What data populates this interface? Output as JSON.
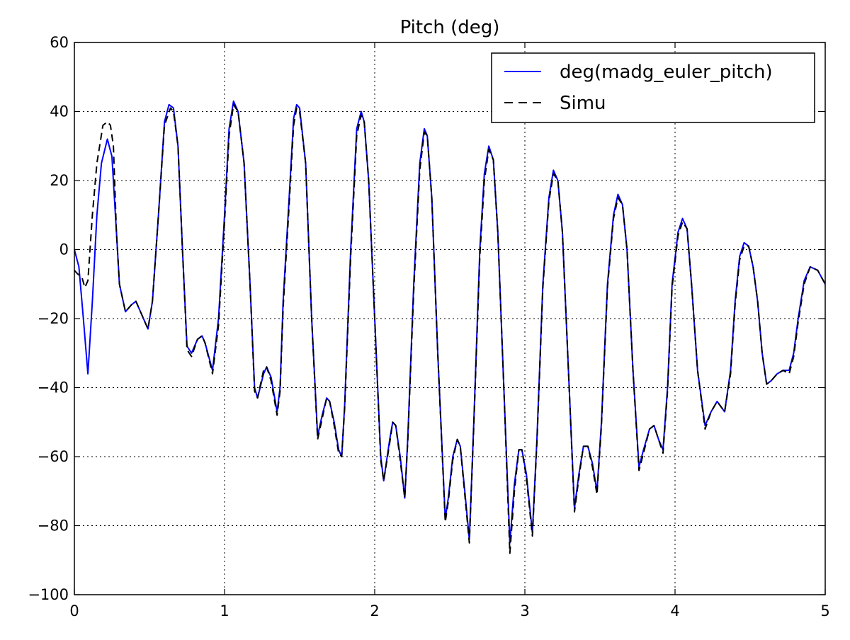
{
  "chart_data": {
    "type": "line",
    "title": "Pitch (deg)",
    "xlabel": "",
    "ylabel": "",
    "xlim": [
      0,
      5
    ],
    "ylim": [
      -100,
      60
    ],
    "xticks": [
      0,
      1,
      2,
      3,
      4,
      5
    ],
    "xtick_labels": [
      "0",
      "1",
      "2",
      "3",
      "4",
      "5"
    ],
    "yticks": [
      -100,
      -80,
      -60,
      -40,
      -20,
      0,
      20,
      40,
      60
    ],
    "ytick_labels": [
      "−100",
      "−80",
      "−60",
      "−40",
      "−20",
      "0",
      "20",
      "40",
      "60"
    ],
    "grid": true,
    "legend_position": "top-right",
    "series": [
      {
        "name": "deg(madg_euler_pitch)",
        "color": "#0000ff",
        "style": "solid",
        "points": [
          [
            0,
            0
          ],
          [
            0.03,
            -5
          ],
          [
            0.06,
            -20
          ],
          [
            0.09,
            -36
          ],
          [
            0.12,
            -15
          ],
          [
            0.15,
            10
          ],
          [
            0.18,
            25
          ],
          [
            0.22,
            32
          ],
          [
            0.25,
            27
          ],
          [
            0.28,
            5
          ],
          [
            0.3,
            -10
          ],
          [
            0.34,
            -18
          ],
          [
            0.38,
            -16
          ],
          [
            0.41,
            -15
          ],
          [
            0.45,
            -19
          ],
          [
            0.49,
            -23
          ],
          [
            0.52,
            -15
          ],
          [
            0.56,
            10
          ],
          [
            0.6,
            37
          ],
          [
            0.63,
            42
          ],
          [
            0.66,
            41
          ],
          [
            0.69,
            30
          ],
          [
            0.72,
            0
          ],
          [
            0.75,
            -28
          ],
          [
            0.78,
            -30
          ],
          [
            0.82,
            -26
          ],
          [
            0.85,
            -25
          ],
          [
            0.87,
            -27
          ],
          [
            0.92,
            -35
          ],
          [
            0.96,
            -20
          ],
          [
            1.0,
            10
          ],
          [
            1.03,
            35
          ],
          [
            1.06,
            43
          ],
          [
            1.09,
            40
          ],
          [
            1.13,
            25
          ],
          [
            1.17,
            -10
          ],
          [
            1.2,
            -40
          ],
          [
            1.22,
            -43
          ],
          [
            1.26,
            -36
          ],
          [
            1.28,
            -34
          ],
          [
            1.31,
            -37
          ],
          [
            1.35,
            -47
          ],
          [
            1.37,
            -40
          ],
          [
            1.39,
            -15
          ],
          [
            1.43,
            15
          ],
          [
            1.46,
            38
          ],
          [
            1.48,
            42
          ],
          [
            1.5,
            41
          ],
          [
            1.54,
            25
          ],
          [
            1.58,
            -20
          ],
          [
            1.62,
            -54
          ],
          [
            1.65,
            -48
          ],
          [
            1.68,
            -43
          ],
          [
            1.7,
            -44
          ],
          [
            1.73,
            -50
          ],
          [
            1.76,
            -58
          ],
          [
            1.78,
            -60
          ],
          [
            1.8,
            -45
          ],
          [
            1.84,
            0
          ],
          [
            1.88,
            35
          ],
          [
            1.91,
            40
          ],
          [
            1.93,
            37
          ],
          [
            1.96,
            20
          ],
          [
            2.0,
            -20
          ],
          [
            2.04,
            -60
          ],
          [
            2.06,
            -67
          ],
          [
            2.1,
            -55
          ],
          [
            2.12,
            -50
          ],
          [
            2.14,
            -51
          ],
          [
            2.17,
            -60
          ],
          [
            2.2,
            -72
          ],
          [
            2.22,
            -55
          ],
          [
            2.26,
            -10
          ],
          [
            2.3,
            25
          ],
          [
            2.33,
            35
          ],
          [
            2.35,
            33
          ],
          [
            2.38,
            15
          ],
          [
            2.42,
            -30
          ],
          [
            2.47,
            -78
          ],
          [
            2.49,
            -72
          ],
          [
            2.52,
            -60
          ],
          [
            2.55,
            -55
          ],
          [
            2.57,
            -57
          ],
          [
            2.6,
            -70
          ],
          [
            2.63,
            -84
          ],
          [
            2.66,
            -50
          ],
          [
            2.7,
            0
          ],
          [
            2.73,
            22
          ],
          [
            2.76,
            30
          ],
          [
            2.79,
            26
          ],
          [
            2.82,
            5
          ],
          [
            2.86,
            -40
          ],
          [
            2.9,
            -85
          ],
          [
            2.93,
            -68
          ],
          [
            2.96,
            -58
          ],
          [
            2.98,
            -58
          ],
          [
            3.01,
            -65
          ],
          [
            3.05,
            -82
          ],
          [
            3.08,
            -55
          ],
          [
            3.12,
            -10
          ],
          [
            3.16,
            15
          ],
          [
            3.19,
            23
          ],
          [
            3.22,
            20
          ],
          [
            3.25,
            5
          ],
          [
            3.29,
            -35
          ],
          [
            3.33,
            -75
          ],
          [
            3.36,
            -65
          ],
          [
            3.39,
            -57
          ],
          [
            3.42,
            -57
          ],
          [
            3.45,
            -62
          ],
          [
            3.48,
            -70
          ],
          [
            3.51,
            -50
          ],
          [
            3.55,
            -10
          ],
          [
            3.59,
            10
          ],
          [
            3.62,
            16
          ],
          [
            3.65,
            13
          ],
          [
            3.68,
            0
          ],
          [
            3.72,
            -35
          ],
          [
            3.76,
            -63
          ],
          [
            3.79,
            -58
          ],
          [
            3.83,
            -52
          ],
          [
            3.86,
            -51
          ],
          [
            3.89,
            -55
          ],
          [
            3.92,
            -58
          ],
          [
            3.95,
            -40
          ],
          [
            3.98,
            -10
          ],
          [
            4.02,
            5
          ],
          [
            4.05,
            9
          ],
          [
            4.08,
            6
          ],
          [
            4.11,
            -10
          ],
          [
            4.15,
            -35
          ],
          [
            4.2,
            -51
          ],
          [
            4.24,
            -47
          ],
          [
            4.28,
            -44
          ],
          [
            4.33,
            -47
          ],
          [
            4.37,
            -35
          ],
          [
            4.4,
            -15
          ],
          [
            4.43,
            -2
          ],
          [
            4.46,
            2
          ],
          [
            4.49,
            1
          ],
          [
            4.52,
            -5
          ],
          [
            4.55,
            -15
          ],
          [
            4.58,
            -30
          ],
          [
            4.61,
            -39
          ],
          [
            4.64,
            -38
          ],
          [
            4.68,
            -36
          ],
          [
            4.72,
            -35
          ],
          [
            4.76,
            -35
          ],
          [
            4.79,
            -30
          ],
          [
            4.82,
            -20
          ],
          [
            4.86,
            -9
          ],
          [
            4.9,
            -5
          ],
          [
            4.95,
            -6
          ],
          [
            5.0,
            -10
          ],
          [
            5.02,
            -16
          ]
        ]
      },
      {
        "name": "Simu",
        "color": "#000000",
        "style": "dashed",
        "points": [
          [
            0,
            -6
          ],
          [
            0.02,
            -7
          ],
          [
            0.05,
            -8
          ],
          [
            0.07,
            -11
          ],
          [
            0.09,
            -9
          ],
          [
            0.12,
            10
          ],
          [
            0.15,
            25
          ],
          [
            0.19,
            36
          ],
          [
            0.22,
            37
          ],
          [
            0.24,
            36
          ],
          [
            0.26,
            30
          ],
          [
            0.28,
            5
          ],
          [
            0.3,
            -10
          ],
          [
            0.34,
            -18
          ],
          [
            0.38,
            -16
          ],
          [
            0.41,
            -15
          ],
          [
            0.45,
            -19
          ],
          [
            0.49,
            -23
          ],
          [
            0.52,
            -15
          ],
          [
            0.56,
            10
          ],
          [
            0.6,
            36
          ],
          [
            0.64,
            41
          ],
          [
            0.66,
            40
          ],
          [
            0.69,
            30
          ],
          [
            0.72,
            0
          ],
          [
            0.75,
            -29
          ],
          [
            0.78,
            -31
          ],
          [
            0.82,
            -26
          ],
          [
            0.85,
            -25
          ],
          [
            0.87,
            -27
          ],
          [
            0.92,
            -36
          ],
          [
            0.96,
            -22
          ],
          [
            1.0,
            8
          ],
          [
            1.03,
            33
          ],
          [
            1.06,
            42
          ],
          [
            1.09,
            40
          ],
          [
            1.13,
            25
          ],
          [
            1.17,
            -10
          ],
          [
            1.2,
            -41
          ],
          [
            1.22,
            -43
          ],
          [
            1.26,
            -35
          ],
          [
            1.28,
            -34
          ],
          [
            1.31,
            -38
          ],
          [
            1.35,
            -48
          ],
          [
            1.37,
            -41
          ],
          [
            1.39,
            -17
          ],
          [
            1.43,
            13
          ],
          [
            1.46,
            36
          ],
          [
            1.48,
            41
          ],
          [
            1.5,
            40
          ],
          [
            1.54,
            25
          ],
          [
            1.58,
            -20
          ],
          [
            1.62,
            -55
          ],
          [
            1.65,
            -49
          ],
          [
            1.68,
            -43
          ],
          [
            1.7,
            -44
          ],
          [
            1.73,
            -51
          ],
          [
            1.76,
            -59
          ],
          [
            1.78,
            -60
          ],
          [
            1.8,
            -46
          ],
          [
            1.84,
            -2
          ],
          [
            1.88,
            33
          ],
          [
            1.91,
            39
          ],
          [
            1.93,
            37
          ],
          [
            1.96,
            20
          ],
          [
            2.0,
            -20
          ],
          [
            2.04,
            -61
          ],
          [
            2.06,
            -67
          ],
          [
            2.1,
            -56
          ],
          [
            2.12,
            -50
          ],
          [
            2.14,
            -51
          ],
          [
            2.17,
            -61
          ],
          [
            2.2,
            -72
          ],
          [
            2.22,
            -56
          ],
          [
            2.26,
            -12
          ],
          [
            2.3,
            23
          ],
          [
            2.33,
            34
          ],
          [
            2.35,
            33
          ],
          [
            2.38,
            15
          ],
          [
            2.42,
            -30
          ],
          [
            2.47,
            -79
          ],
          [
            2.49,
            -73
          ],
          [
            2.52,
            -61
          ],
          [
            2.55,
            -55
          ],
          [
            2.57,
            -57
          ],
          [
            2.6,
            -71
          ],
          [
            2.63,
            -85
          ],
          [
            2.66,
            -51
          ],
          [
            2.7,
            -2
          ],
          [
            2.73,
            20
          ],
          [
            2.76,
            29
          ],
          [
            2.79,
            26
          ],
          [
            2.82,
            5
          ],
          [
            2.86,
            -40
          ],
          [
            2.9,
            -88
          ],
          [
            2.93,
            -70
          ],
          [
            2.96,
            -58
          ],
          [
            2.98,
            -58
          ],
          [
            3.01,
            -66
          ],
          [
            3.05,
            -83
          ],
          [
            3.08,
            -56
          ],
          [
            3.12,
            -11
          ],
          [
            3.16,
            14
          ],
          [
            3.19,
            22
          ],
          [
            3.22,
            20
          ],
          [
            3.25,
            5
          ],
          [
            3.29,
            -35
          ],
          [
            3.33,
            -76
          ],
          [
            3.36,
            -66
          ],
          [
            3.39,
            -57
          ],
          [
            3.42,
            -57
          ],
          [
            3.45,
            -63
          ],
          [
            3.48,
            -71
          ],
          [
            3.51,
            -51
          ],
          [
            3.55,
            -11
          ],
          [
            3.59,
            9
          ],
          [
            3.62,
            15
          ],
          [
            3.65,
            13
          ],
          [
            3.68,
            0
          ],
          [
            3.72,
            -35
          ],
          [
            3.76,
            -64
          ],
          [
            3.79,
            -59
          ],
          [
            3.83,
            -52
          ],
          [
            3.86,
            -51
          ],
          [
            3.89,
            -55
          ],
          [
            3.92,
            -59
          ],
          [
            3.95,
            -41
          ],
          [
            3.98,
            -11
          ],
          [
            4.02,
            4
          ],
          [
            4.05,
            8
          ],
          [
            4.08,
            6
          ],
          [
            4.11,
            -10
          ],
          [
            4.15,
            -35
          ],
          [
            4.2,
            -52
          ],
          [
            4.24,
            -47
          ],
          [
            4.28,
            -44
          ],
          [
            4.33,
            -47
          ],
          [
            4.37,
            -36
          ],
          [
            4.4,
            -16
          ],
          [
            4.43,
            -3
          ],
          [
            4.46,
            1
          ],
          [
            4.49,
            1
          ],
          [
            4.52,
            -5
          ],
          [
            4.55,
            -15
          ],
          [
            4.58,
            -30
          ],
          [
            4.61,
            -39
          ],
          [
            4.64,
            -38
          ],
          [
            4.68,
            -36
          ],
          [
            4.72,
            -35
          ],
          [
            4.76,
            -36
          ],
          [
            4.79,
            -31
          ],
          [
            4.82,
            -21
          ],
          [
            4.86,
            -10
          ],
          [
            4.9,
            -5
          ],
          [
            4.95,
            -6
          ],
          [
            5.0,
            -10
          ],
          [
            5.02,
            -16
          ]
        ]
      }
    ]
  }
}
